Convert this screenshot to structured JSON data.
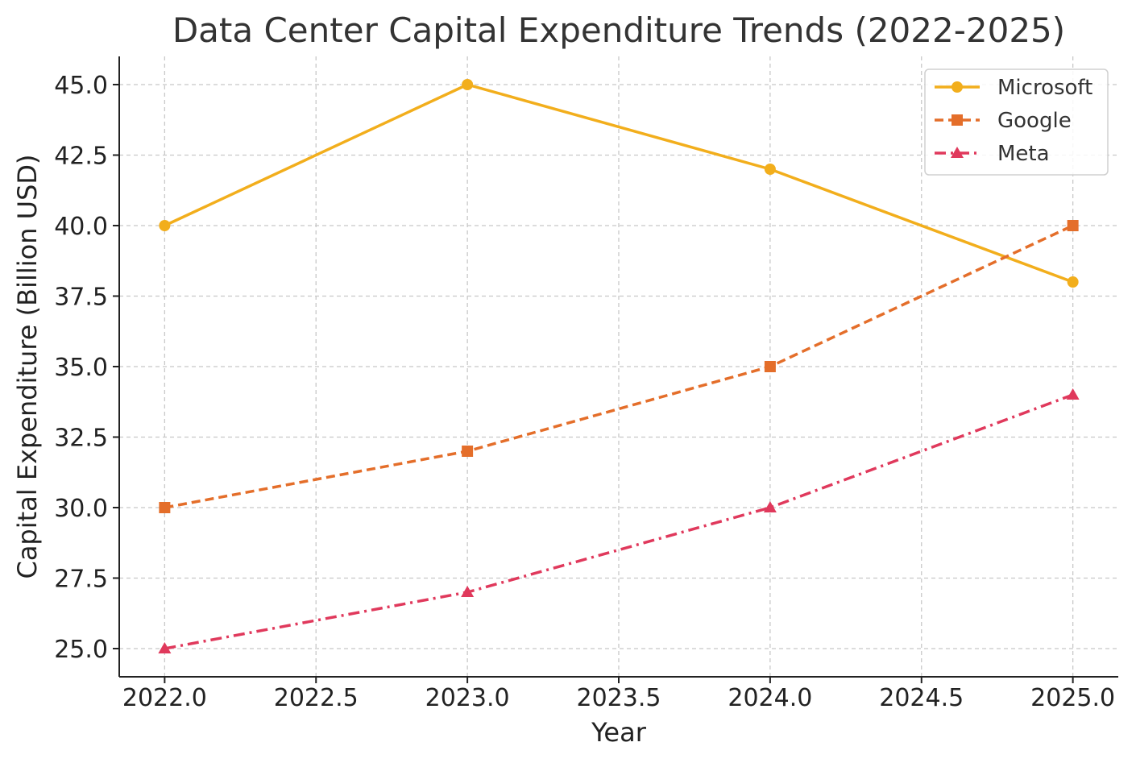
{
  "chart_data": {
    "type": "line",
    "title": "Data Center Capital Expenditure Trends (2022-2025)",
    "xlabel": "Year",
    "ylabel": "Capital Expenditure (Billion USD)",
    "x": [
      2022,
      2023,
      2024,
      2025
    ],
    "xlim": [
      2021.85,
      2025.15
    ],
    "ylim": [
      24.0,
      46.0
    ],
    "xticks": [
      "2022.0",
      "2022.5",
      "2023.0",
      "2023.5",
      "2024.0",
      "2024.5",
      "2025.0"
    ],
    "yticks": [
      "25.0",
      "27.5",
      "30.0",
      "32.5",
      "35.0",
      "37.5",
      "40.0",
      "42.5",
      "45.0"
    ],
    "grid": true,
    "legend_position": "top-right",
    "series": [
      {
        "name": "Microsoft",
        "values": [
          40,
          45,
          42,
          38
        ],
        "color": "#F2AE1C",
        "marker": "circle",
        "linestyle": "solid"
      },
      {
        "name": "Google",
        "values": [
          30,
          32,
          35,
          40
        ],
        "color": "#E46E2A",
        "marker": "square",
        "linestyle": "dashed"
      },
      {
        "name": "Meta",
        "values": [
          25,
          27,
          30,
          34
        ],
        "color": "#E0395C",
        "marker": "triangle",
        "linestyle": "dashdot"
      }
    ]
  }
}
